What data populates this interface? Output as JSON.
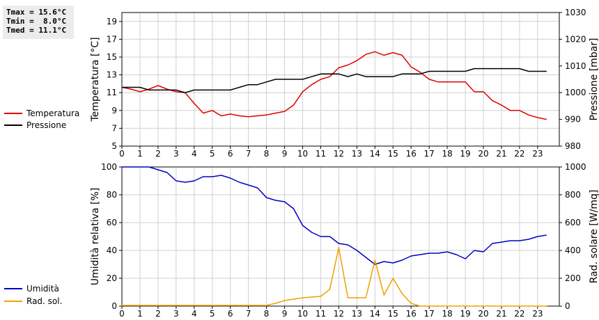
{
  "stats": [
    "Tmax = 15.6°C",
    "Tmin =  8.0°C",
    "Tmed = 11.1°C"
  ],
  "colors": {
    "temperature": "#e00000",
    "pressure": "#000000",
    "humidity": "#0000c0",
    "radiation": "#f0a000",
    "grid": "#d0d0d0"
  },
  "chart_data": [
    {
      "type": "line",
      "grid": true,
      "legend_placement": "left",
      "x_ticks": [
        0,
        1,
        2,
        3,
        4,
        5,
        6,
        7,
        8,
        9,
        10,
        11,
        12,
        13,
        14,
        15,
        16,
        17,
        18,
        19,
        20,
        21,
        22,
        23
      ],
      "xlim": [
        0,
        24.2
      ],
      "ylabel": "Temperatura [°C]",
      "ylim": [
        5,
        20
      ],
      "y_ticks": [
        5,
        7,
        9,
        11,
        13,
        15,
        17,
        19
      ],
      "y2label": "Pressione [mbar]",
      "y2lim": [
        980,
        1030
      ],
      "y2_ticks": [
        980,
        990,
        1000,
        1010,
        1020,
        1030
      ],
      "series": [
        {
          "name": "Temperatura",
          "axis": "left",
          "x": [
            0,
            0.5,
            1,
            1.5,
            2,
            2.5,
            3,
            3.5,
            4,
            4.5,
            5,
            5.5,
            6,
            6.5,
            7,
            7.5,
            8,
            8.5,
            9,
            9.5,
            10,
            10.5,
            11,
            11.5,
            12,
            12.5,
            13,
            13.5,
            14,
            14.5,
            15,
            15.5,
            16,
            16.5,
            17,
            17.5,
            18,
            18.5,
            19,
            19.5,
            20,
            20.5,
            21,
            21.5,
            22,
            22.5,
            23,
            23.5
          ],
          "y": [
            11.6,
            11.4,
            11.1,
            11.4,
            11.8,
            11.4,
            11.1,
            11.0,
            9.8,
            8.7,
            9.0,
            8.4,
            8.6,
            8.4,
            8.3,
            8.4,
            8.5,
            8.7,
            8.9,
            9.6,
            11.1,
            11.9,
            12.5,
            12.8,
            13.8,
            14.1,
            14.6,
            15.3,
            15.6,
            15.2,
            15.5,
            15.2,
            13.9,
            13.3,
            12.5,
            12.2,
            12.2,
            12.2,
            12.2,
            11.1,
            11.1,
            10.1,
            9.6,
            9.0,
            9.0,
            8.5,
            8.2,
            8.0
          ]
        },
        {
          "name": "Pressione",
          "axis": "right",
          "x": [
            0,
            0.5,
            1,
            1.5,
            2,
            2.5,
            3,
            3.5,
            4,
            4.5,
            5,
            5.5,
            6,
            6.5,
            7,
            7.5,
            8,
            8.5,
            9,
            9.5,
            10,
            10.5,
            11,
            11.5,
            12,
            12.5,
            13,
            13.5,
            14,
            14.5,
            15,
            15.5,
            16,
            16.5,
            17,
            17.5,
            18,
            18.5,
            19,
            19.5,
            20,
            20.5,
            21,
            21.5,
            22,
            22.5,
            23,
            23.5
          ],
          "y": [
            1002,
            1002,
            1002,
            1001,
            1001,
            1001,
            1001,
            1000,
            1001,
            1001,
            1001,
            1001,
            1001,
            1002,
            1003,
            1003,
            1004,
            1005,
            1005,
            1005,
            1005,
            1006,
            1007,
            1007,
            1007,
            1006,
            1007,
            1006,
            1006,
            1006,
            1006,
            1007,
            1007,
            1007,
            1008,
            1008,
            1008,
            1008,
            1008,
            1009,
            1009,
            1009,
            1009,
            1009,
            1009,
            1008,
            1008,
            1008
          ]
        }
      ]
    },
    {
      "type": "line",
      "grid": true,
      "legend_placement": "left",
      "x_ticks": [
        0,
        1,
        2,
        3,
        4,
        5,
        6,
        7,
        8,
        9,
        10,
        11,
        12,
        13,
        14,
        15,
        16,
        17,
        18,
        19,
        20,
        21,
        22,
        23
      ],
      "xlim": [
        0,
        24.2
      ],
      "ylabel": "Umidità relativa [%]",
      "ylim": [
        0,
        100
      ],
      "y_ticks": [
        0,
        20,
        40,
        60,
        80,
        100
      ],
      "y2label": "Rad. solare [W/mq]",
      "y2lim": [
        0,
        1000
      ],
      "y2_ticks": [
        0,
        200,
        400,
        600,
        800,
        1000
      ],
      "series": [
        {
          "name": "Umidità",
          "axis": "left",
          "x": [
            0,
            0.5,
            1,
            1.5,
            2,
            2.5,
            3,
            3.5,
            4,
            4.5,
            5,
            5.5,
            6,
            6.5,
            7,
            7.5,
            8,
            8.5,
            9,
            9.5,
            10,
            10.5,
            11,
            11.5,
            12,
            12.5,
            13,
            13.5,
            14,
            14.5,
            15,
            15.5,
            16,
            16.5,
            17,
            17.5,
            18,
            18.5,
            19,
            19.5,
            20,
            20.5,
            21,
            21.5,
            22,
            22.5,
            23,
            23.5
          ],
          "y": [
            100,
            100,
            100,
            100,
            98,
            96,
            90,
            89,
            90,
            93,
            93,
            94,
            92,
            89,
            87,
            85,
            78,
            76,
            75,
            70,
            58,
            53,
            50,
            50,
            45,
            44,
            40,
            35,
            30,
            32,
            31,
            33,
            36,
            37,
            38,
            38,
            39,
            37,
            34,
            40,
            39,
            45,
            46,
            47,
            47,
            48,
            50,
            51
          ]
        },
        {
          "name": "Rad. sol.",
          "axis": "right",
          "x": [
            0,
            0.5,
            1,
            1.5,
            2,
            2.5,
            3,
            3.5,
            4,
            4.5,
            5,
            5.5,
            6,
            6.5,
            7,
            7.5,
            8,
            8.5,
            9,
            9.5,
            10,
            10.5,
            11,
            11.5,
            12,
            12.5,
            13,
            13.5,
            14,
            14.5,
            15,
            15.5,
            16,
            16.5,
            17,
            17.5,
            18,
            18.5,
            19,
            19.5,
            20,
            20.5,
            21,
            21.5,
            22,
            22.5,
            23,
            23.5
          ],
          "y": [
            5,
            5,
            5,
            5,
            5,
            5,
            5,
            5,
            5,
            5,
            5,
            5,
            5,
            5,
            5,
            5,
            5,
            20,
            40,
            50,
            60,
            65,
            70,
            120,
            420,
            60,
            60,
            60,
            330,
            80,
            200,
            90,
            20,
            0,
            0,
            0,
            0,
            0,
            0,
            0,
            0,
            0,
            0,
            0,
            0,
            0,
            0,
            0
          ]
        }
      ]
    }
  ]
}
